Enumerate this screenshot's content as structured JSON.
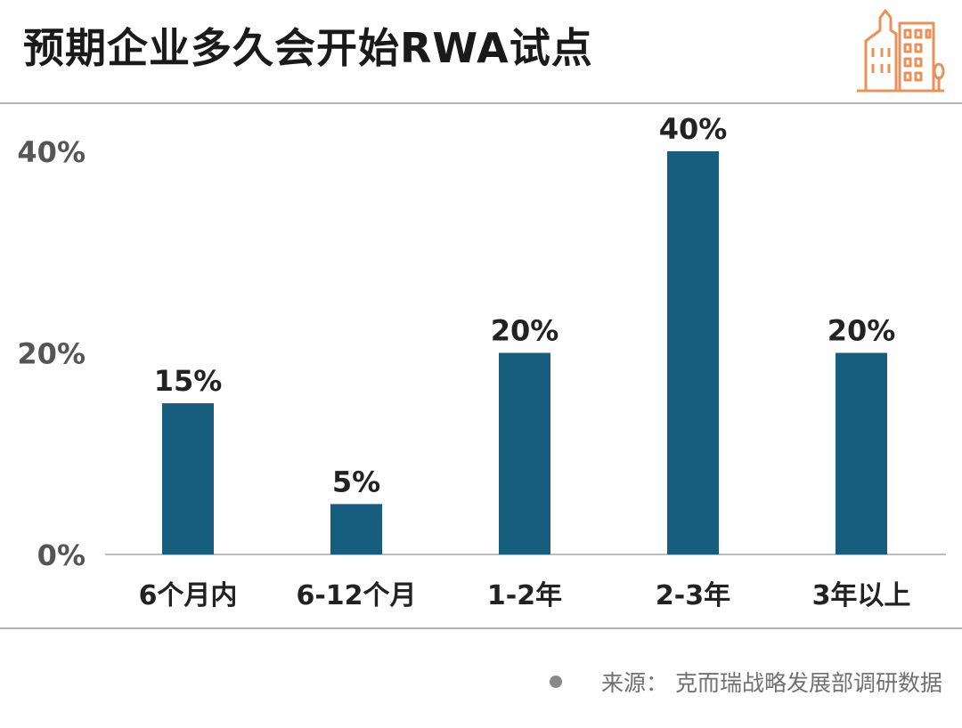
{
  "title": "预期企业多久会开始RWA试点",
  "source": "来源：  克而瑞战略发展部调研数据",
  "logo": {
    "icon": "city-buildings-icon",
    "color": "#E8925A"
  },
  "colors": {
    "bar": "#165D7E",
    "axis_text": "#555555",
    "label_text": "#222222",
    "rule": "#B5B5B5"
  },
  "chart_data": {
    "type": "bar",
    "title": "预期企业多久会开始RWA试点",
    "categories": [
      "6个月内",
      "6-12个月",
      "1-2年",
      "2-3年",
      "3年以上"
    ],
    "values": [
      15,
      5,
      20,
      40,
      20
    ],
    "value_labels": [
      "15%",
      "5%",
      "20%",
      "40%",
      "20%"
    ],
    "yticks": [
      0,
      20,
      40
    ],
    "ytick_labels": [
      "0%",
      "20%",
      "40%"
    ],
    "ylim": [
      0,
      40
    ],
    "xlabel": "",
    "ylabel": "",
    "grid": false,
    "legend": "none"
  }
}
